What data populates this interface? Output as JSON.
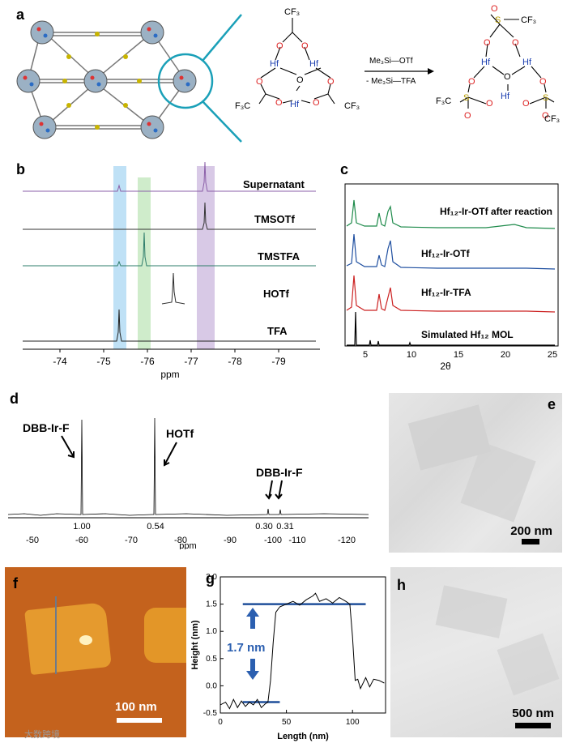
{
  "panel_labels": {
    "a": "a",
    "b": "b",
    "c": "c",
    "d": "d",
    "e": "e",
    "f": "f",
    "g": "g",
    "h": "h"
  },
  "panel_a": {
    "reagent_top": "Me₃Si—OTf",
    "reagent_bottom": "- Me₃Si—TFA",
    "left_cluster": {
      "cf3_top": "CF₃",
      "cf3_left": "F₃C",
      "cf3_right": "CF₃",
      "hf": "Hf",
      "o": "O"
    },
    "right_cluster": {
      "cf3_top": "CF₃",
      "cf3_left": "F₃C",
      "cf3_right": "CF₃",
      "hf": "Hf",
      "o": "O",
      "s": "S"
    }
  },
  "panel_b": {
    "xlabel": "ppm",
    "traces": [
      "Supernatant",
      "TMSOTf",
      "TMSTFA",
      "HOTf",
      "TFA"
    ],
    "ticks": [
      "-74",
      "-75",
      "-76",
      "-77",
      "-78",
      "-79"
    ],
    "highlight_colors": [
      "#bfe1f6",
      "#cfeccb",
      "#d8c9e6"
    ],
    "trace_colors": [
      "#8b5fa8",
      "#333333",
      "#2e7d6b",
      "#2f2f2f",
      "#222222"
    ]
  },
  "panel_c": {
    "xlabel": "2θ",
    "ticks": [
      "5",
      "10",
      "15",
      "20",
      "25"
    ],
    "traces": [
      {
        "label": "Hf₁₂-Ir-OTf after reaction",
        "color": "#1d8a4a"
      },
      {
        "label": "Hf₁₂-Ir-OTf",
        "color": "#1f4fa0"
      },
      {
        "label": "Hf₁₂-Ir-TFA",
        "color": "#cc2222"
      },
      {
        "label": "Simulated Hf₁₂ MOL",
        "color": "#000000"
      }
    ]
  },
  "panel_d": {
    "xlabel": "ppm",
    "ticks": [
      "-50",
      "-60",
      "-70",
      "-80",
      "-90",
      "-100",
      "-110",
      "-120"
    ],
    "annotations": {
      "dbb_left": "DBB-Ir-F",
      "hotf": "HOTf",
      "dbb_right": "DBB-Ir-F"
    },
    "integrals": [
      "1.00",
      "0.54",
      "0.30",
      "0.31"
    ]
  },
  "panel_e": {
    "scale_label": "200 nm"
  },
  "panel_f": {
    "scale_label": "100 nm"
  },
  "panel_g": {
    "chart_data": {
      "type": "line",
      "xlabel": "Length (nm)",
      "ylabel": "Height (nm)",
      "xlim": [
        0,
        125
      ],
      "ylim": [
        -0.5,
        2.0
      ],
      "xticks": [
        "0",
        "50",
        "100"
      ],
      "yticks": [
        "-0.5",
        "0.0",
        "0.5",
        "1.0",
        "1.5",
        "2.0"
      ],
      "annotation": "1.7 nm",
      "levels": [
        -0.3,
        1.5
      ],
      "x": [
        0,
        4,
        7,
        10,
        13,
        16,
        19,
        22,
        25,
        28,
        31,
        34,
        36,
        38,
        40,
        42,
        45,
        50,
        55,
        60,
        65,
        70,
        72,
        75,
        80,
        85,
        90,
        95,
        98,
        100,
        102,
        104,
        106,
        110,
        113,
        116,
        120,
        124
      ],
      "y": [
        -0.35,
        -0.3,
        -0.42,
        -0.25,
        -0.4,
        -0.28,
        -0.38,
        -0.3,
        -0.35,
        -0.25,
        -0.4,
        -0.33,
        -0.3,
        0.1,
        0.8,
        1.35,
        1.45,
        1.5,
        1.55,
        1.48,
        1.58,
        1.65,
        1.7,
        1.55,
        1.6,
        1.52,
        1.62,
        1.55,
        1.5,
        0.9,
        0.1,
        0.12,
        -0.05,
        0.15,
        -0.02,
        0.12,
        0.1,
        0.05
      ]
    }
  },
  "panel_h": {
    "scale_label": "500 nm"
  },
  "watermark": "大数跨境"
}
